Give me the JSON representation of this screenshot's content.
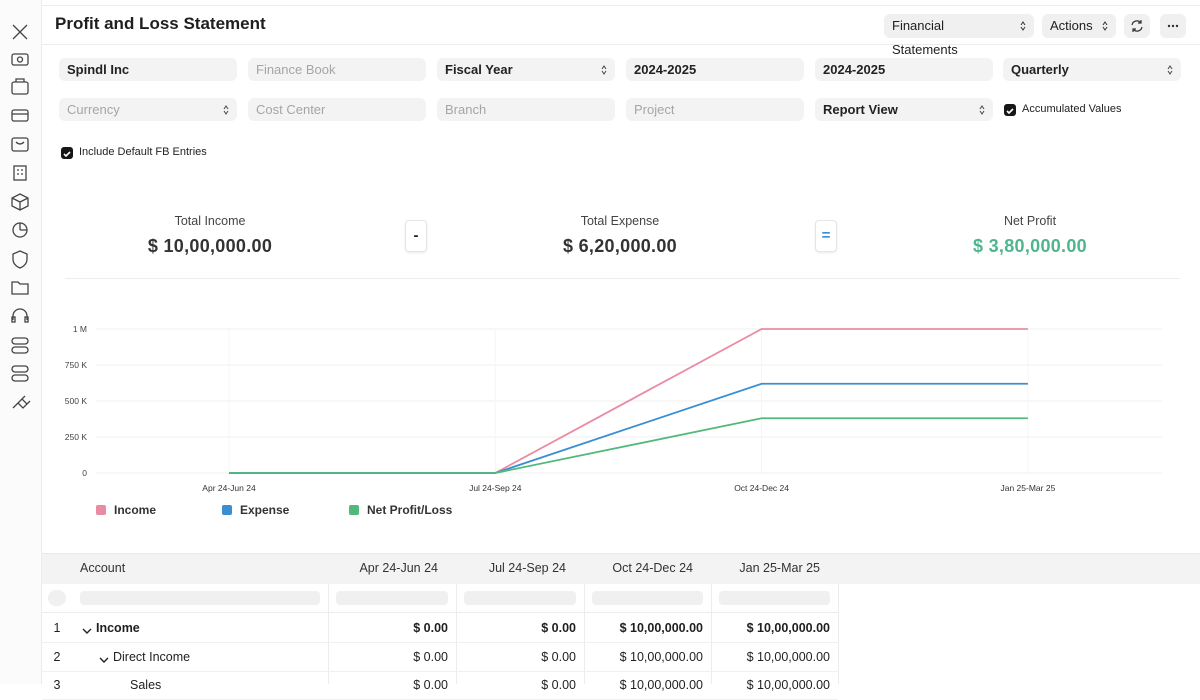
{
  "header": {
    "title": "Profit and Loss Statement",
    "buttons": [
      "Financial Statements",
      "Actions"
    ]
  },
  "filters": [
    {
      "value": "Spindl Inc"
    },
    {
      "placeholder": "Finance Book"
    },
    {
      "value": "Fiscal Year",
      "select": true
    },
    {
      "value": "2024-2025"
    },
    {
      "value": "2024-2025"
    },
    {
      "value": "Quarterly",
      "select": true
    },
    {
      "placeholder": "Currency",
      "select": true
    },
    {
      "placeholder": "Cost Center"
    },
    {
      "placeholder": "Branch"
    },
    {
      "placeholder": "Project"
    },
    {
      "value": "Report View",
      "select": true
    }
  ],
  "checkboxes": [
    {
      "label": "Accumulated Values",
      "checked": true
    },
    {
      "label": "Include Default FB Entries",
      "checked": true
    }
  ],
  "summary": {
    "items": [
      {
        "label": "Total Income",
        "amount": "$ 10,00,000.00"
      },
      {
        "label": "Total Expense",
        "amount": "$ 6,20,000.00"
      },
      {
        "label": "Net Profit",
        "amount": "$ 3,80,000.00",
        "color": "#4fb58c"
      }
    ],
    "operators": [
      "-",
      "="
    ]
  },
  "chart_data": {
    "type": "line",
    "categories": [
      "Apr 24-Jun 24",
      "Jul 24-Sep 24",
      "Oct 24-Dec 24",
      "Jan 25-Mar 25"
    ],
    "series": [
      {
        "name": "Income",
        "color": "#e98ca3",
        "values": [
          0,
          0,
          1000000,
          1000000
        ]
      },
      {
        "name": "Expense",
        "color": "#3a8fd2",
        "values": [
          0,
          0,
          620000,
          620000
        ]
      },
      {
        "name": "Net Profit/Loss",
        "color": "#52b97c",
        "values": [
          0,
          0,
          380000,
          380000
        ]
      }
    ],
    "ylim": [
      0,
      1000000
    ],
    "yticks": [
      0,
      {
        "value": 250000,
        "label": "250 K"
      },
      {
        "value": 500000,
        "label": "500 K"
      },
      {
        "value": 750000,
        "label": "750 K"
      },
      {
        "value": 1000000,
        "label": "1 M"
      }
    ],
    "grid": true
  },
  "table": {
    "columns": [
      "Account",
      "Apr 24-Jun 24",
      "Jul 24-Sep 24",
      "Oct 24-Dec 24",
      "Jan 25-Mar 25"
    ],
    "rows": [
      {
        "n": 1,
        "account": "Income",
        "bold": true,
        "cells": [
          "$ 0.00",
          "$ 0.00",
          "$ 10,00,000.00",
          "$ 10,00,000.00"
        ]
      },
      {
        "n": 2,
        "account": "Direct Income",
        "cells": [
          "$ 0.00",
          "$ 0.00",
          "$ 10,00,000.00",
          "$ 10,00,000.00"
        ]
      },
      {
        "n": 3,
        "account": "Sales",
        "cells": [
          "$ 0.00",
          "$ 0.00",
          "$ 10,00,000.00",
          "$ 10,00,000.00"
        ]
      }
    ]
  }
}
